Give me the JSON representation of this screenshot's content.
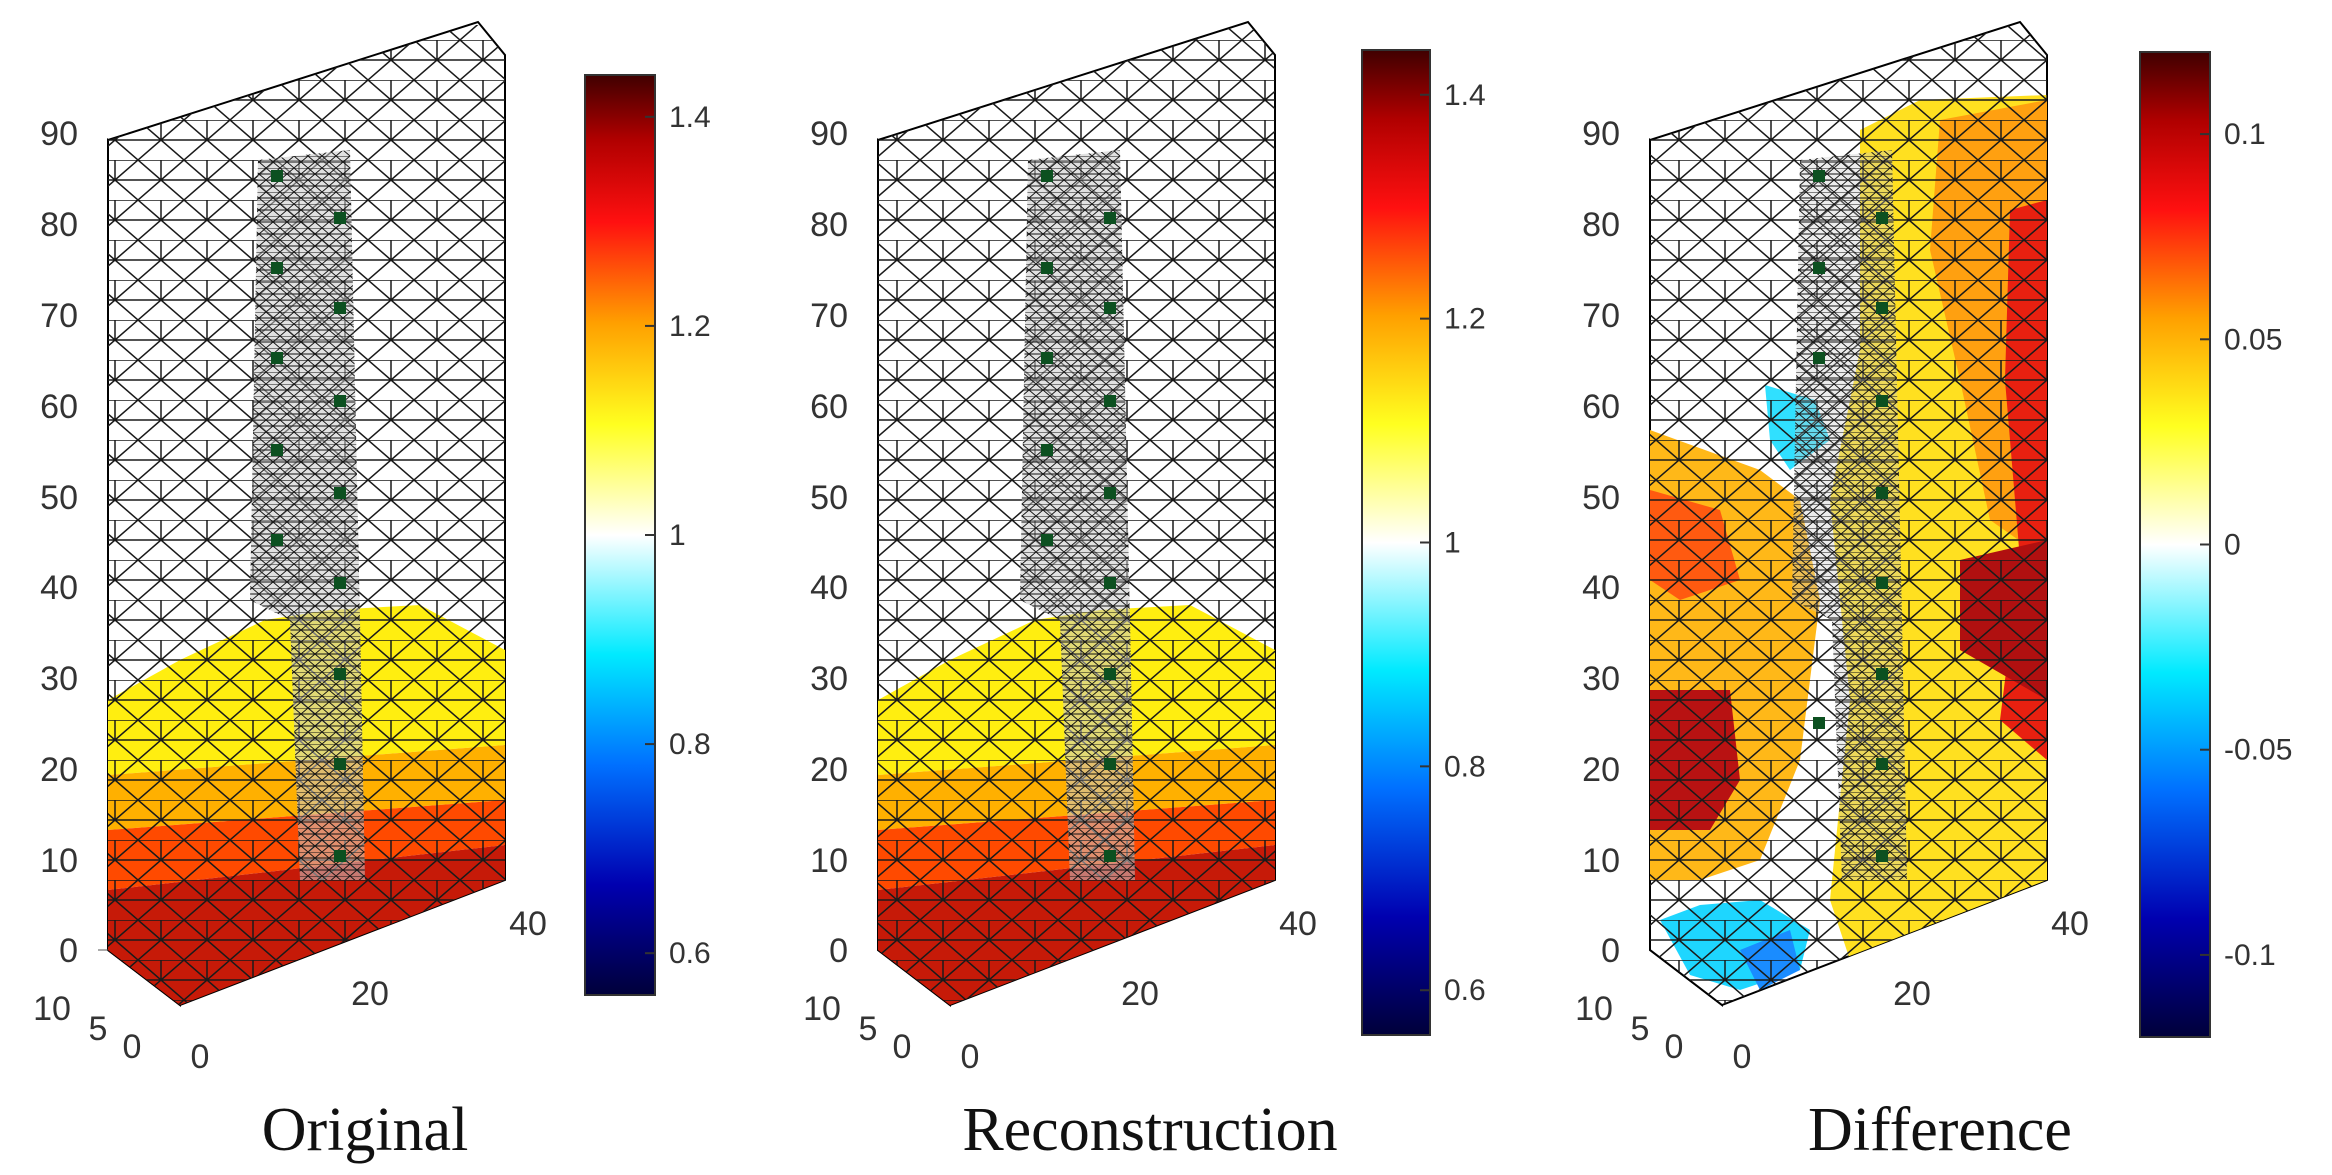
{
  "chart_data": [
    {
      "type": "heatmap",
      "title": "Original",
      "y_ticks": [
        "0",
        "10",
        "20",
        "30",
        "40",
        "50",
        "60",
        "70",
        "80",
        "90"
      ],
      "x_ticks": [
        "0",
        "20",
        "40"
      ],
      "z_ticks": [
        "10",
        "5",
        "0"
      ],
      "colorbar": {
        "ticks": [
          "0.6",
          "0.8",
          "1",
          "1.2",
          "1.4"
        ],
        "values": [
          0.6,
          0.8,
          1,
          1.2,
          1.4
        ],
        "min": 0.56,
        "max": 1.44
      },
      "region_values": [
        {
          "name": "low band",
          "y_from": 0,
          "y_to": 10,
          "value": 1.35
        },
        {
          "name": "lower-middle band",
          "y_from": 10,
          "y_to": 20,
          "value": 1.28
        },
        {
          "name": "middle band",
          "y_from": 20,
          "y_to": 30,
          "value": 1.18
        },
        {
          "name": "upper band",
          "y_from": 30,
          "y_to": 38,
          "value": 1.1
        }
      ]
    },
    {
      "type": "heatmap",
      "title": "Reconstruction",
      "y_ticks": [
        "0",
        "10",
        "20",
        "30",
        "40",
        "50",
        "60",
        "70",
        "80",
        "90"
      ],
      "x_ticks": [
        "0",
        "20",
        "40"
      ],
      "z_ticks": [
        "10",
        "5",
        "0"
      ],
      "colorbar": {
        "ticks": [
          "0.6",
          "0.8",
          "1",
          "1.2",
          "1.4"
        ],
        "values": [
          0.6,
          0.8,
          1,
          1.2,
          1.4
        ],
        "min": 0.56,
        "max": 1.44
      },
      "region_values": [
        {
          "name": "low band",
          "y_from": 0,
          "y_to": 10,
          "value": 1.35
        },
        {
          "name": "lower-middle band",
          "y_from": 10,
          "y_to": 20,
          "value": 1.28
        },
        {
          "name": "middle band",
          "y_from": 20,
          "y_to": 30,
          "value": 1.18
        },
        {
          "name": "upper band",
          "y_from": 30,
          "y_to": 38,
          "value": 1.1
        }
      ]
    },
    {
      "type": "heatmap",
      "title": "Difference",
      "y_ticks": [
        "0",
        "10",
        "20",
        "30",
        "40",
        "50",
        "60",
        "70",
        "80",
        "90"
      ],
      "x_ticks": [
        "0",
        "20",
        "40"
      ],
      "z_ticks": [
        "10",
        "5",
        "0"
      ],
      "colorbar": {
        "ticks": [
          "-0.1",
          "-0.05",
          "0",
          "0.05",
          "0.1"
        ],
        "values": [
          -0.1,
          -0.05,
          0,
          0.05,
          0.1
        ],
        "min": -0.12,
        "max": 0.12
      },
      "region_values": [
        {
          "name": "positive difference zones",
          "value": 0.06
        },
        {
          "name": "peak positive zones",
          "value": 0.1
        },
        {
          "name": "negative difference zones",
          "value": -0.06
        }
      ]
    }
  ]
}
